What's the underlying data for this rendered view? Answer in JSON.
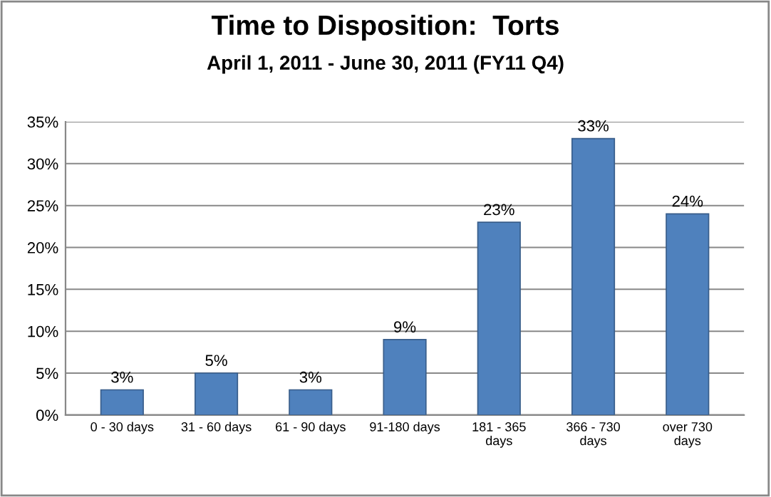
{
  "chart_data": {
    "type": "bar",
    "title": "Time to Disposition:  Torts",
    "subtitle": "April 1, 2011 - June 30, 2011 (FY11 Q4)",
    "categories": [
      "0 - 30 days",
      "31 - 60 days",
      "61 - 90 days",
      "91-180 days",
      "181 - 365\ndays",
      "366 - 730\ndays",
      "over 730\ndays"
    ],
    "values": [
      3,
      5,
      3,
      9,
      23,
      33,
      24
    ],
    "value_labels": [
      "3%",
      "5%",
      "3%",
      "9%",
      "23%",
      "33%",
      "24%"
    ],
    "color": "#4f81bd",
    "ylim": [
      0,
      35
    ],
    "yticks": [
      {
        "value": 0,
        "label": "0%"
      },
      {
        "value": 5,
        "label": "5%"
      },
      {
        "value": 10,
        "label": "10%"
      },
      {
        "value": 15,
        "label": "15%"
      },
      {
        "value": 20,
        "label": "20%"
      },
      {
        "value": 25,
        "label": "25%"
      },
      {
        "value": 30,
        "label": "30%"
      },
      {
        "value": 35,
        "label": "35%"
      }
    ],
    "grid": "y",
    "legend": false
  }
}
